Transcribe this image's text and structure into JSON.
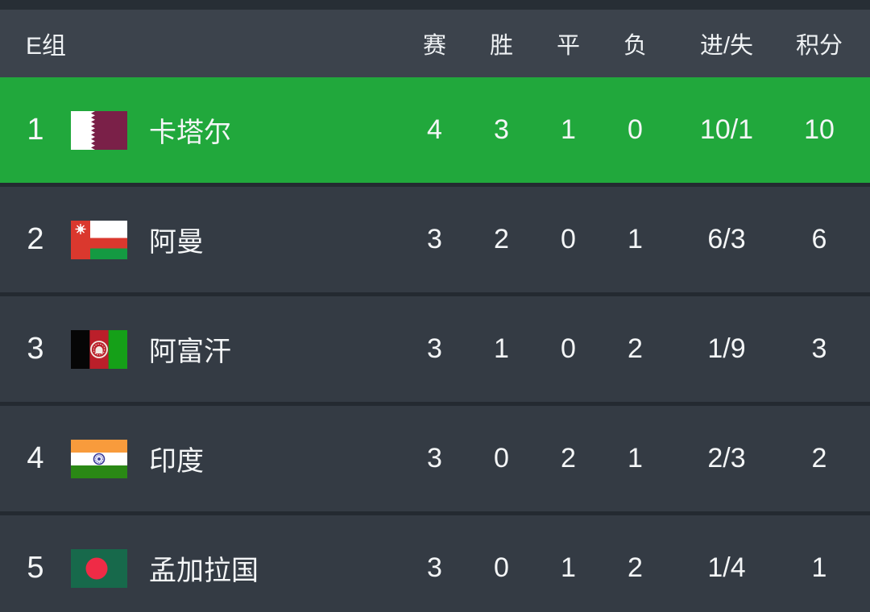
{
  "table": {
    "group_label": "E组",
    "columns": {
      "played": "赛",
      "won": "胜",
      "drawn": "平",
      "lost": "负",
      "goals": "进/失",
      "points": "积分"
    },
    "rows": [
      {
        "rank": "1",
        "team": "卡塔尔",
        "flag": "qatar",
        "played": "4",
        "won": "3",
        "drawn": "1",
        "lost": "0",
        "goals": "10/1",
        "points": "10",
        "highlighted": true
      },
      {
        "rank": "2",
        "team": "阿曼",
        "flag": "oman",
        "played": "3",
        "won": "2",
        "drawn": "0",
        "lost": "1",
        "goals": "6/3",
        "points": "6",
        "highlighted": false
      },
      {
        "rank": "3",
        "team": "阿富汗",
        "flag": "afghanistan",
        "played": "3",
        "won": "1",
        "drawn": "0",
        "lost": "2",
        "goals": "1/9",
        "points": "3",
        "highlighted": false
      },
      {
        "rank": "4",
        "team": "印度",
        "flag": "india",
        "played": "3",
        "won": "0",
        "drawn": "2",
        "lost": "1",
        "goals": "2/3",
        "points": "2",
        "highlighted": false
      },
      {
        "rank": "5",
        "team": "孟加拉国",
        "flag": "bangladesh",
        "played": "3",
        "won": "0",
        "drawn": "1",
        "lost": "2",
        "goals": "1/4",
        "points": "1",
        "highlighted": false
      }
    ],
    "colors": {
      "highlight_green": "#21a83c",
      "header_bg": "#3c434c",
      "row_bg": "#343b44",
      "separator": "#242a31",
      "top_strip": "#272e35",
      "text": "#f4f6f7"
    }
  }
}
